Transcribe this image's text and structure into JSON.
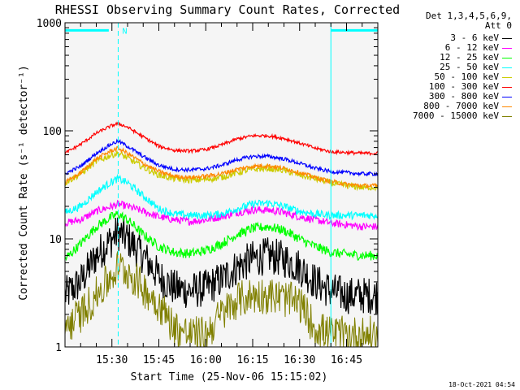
{
  "colors": {
    "background": "#ffffff",
    "axes": "#000000",
    "attenuator_marker": "#00ffff",
    "dashed_marker": "#00ffff"
  },
  "footer": {
    "timestamp": "18-Oct-2021 04:54"
  },
  "chart_data": {
    "type": "line",
    "title": "RHESSI Observing Summary Count Rates, Corrected",
    "xlabel": "Start Time (25-Nov-06 15:15:02)",
    "ylabel": "Corrected Count Rate (s⁻¹ detector⁻¹)",
    "yscale": "log",
    "ylim": [
      1,
      1000
    ],
    "xlim_minutes_after_start": [
      0,
      100
    ],
    "xticks": [
      {
        "label": "15:30",
        "minutes": 15
      },
      {
        "label": "15:45",
        "minutes": 30
      },
      {
        "label": "16:00",
        "minutes": 45
      },
      {
        "label": "16:15",
        "minutes": 60
      },
      {
        "label": "16:30",
        "minutes": 75
      },
      {
        "label": "16:45",
        "minutes": 90
      }
    ],
    "yticks": [
      {
        "label": "1",
        "value": 1
      },
      {
        "label": "10",
        "value": 10
      },
      {
        "label": "100",
        "value": 100
      },
      {
        "label": "1000",
        "value": 1000
      }
    ],
    "legend_header": [
      "Det 1,3,4,5,6,9,",
      "Att 0"
    ],
    "legend_placement": "right",
    "annotations": [
      {
        "text": "N",
        "minutes": 17,
        "value": 850
      },
      {
        "type": "vline-dashed",
        "minutes": 17
      },
      {
        "type": "vline-solid",
        "minutes": 85
      },
      {
        "type": "vline-dashed",
        "minutes": 100
      },
      {
        "type": "hbar",
        "value": 850,
        "from_minutes": 0,
        "to_minutes": 14
      },
      {
        "type": "hbar",
        "value": 850,
        "from_minutes": 85,
        "to_minutes": 100
      }
    ],
    "x_minutes": [
      0,
      5,
      10,
      15,
      17,
      20,
      25,
      30,
      35,
      40,
      45,
      50,
      55,
      60,
      65,
      70,
      75,
      80,
      85,
      90,
      95,
      100
    ],
    "series": [
      {
        "name": "3 - 6 keV",
        "color": "#000000",
        "values": [
          3.0,
          4.0,
          7.0,
          10.0,
          11.5,
          10.0,
          7.0,
          4.5,
          3.5,
          3.3,
          3.5,
          4.2,
          5.5,
          6.5,
          7.0,
          6.5,
          5.5,
          4.0,
          3.3,
          3.0,
          3.0,
          3.0
        ]
      },
      {
        "name": "6 - 12 keV",
        "color": "#ff00ff",
        "values": [
          14.0,
          15.0,
          18.0,
          20.0,
          21.0,
          20.0,
          18.0,
          16.0,
          15.0,
          14.5,
          15.0,
          16.0,
          17.5,
          18.5,
          18.5,
          17.5,
          16.0,
          15.0,
          14.0,
          13.5,
          13.0,
          13.0
        ]
      },
      {
        "name": "12 - 25 keV",
        "color": "#00ff00",
        "values": [
          6.5,
          9.0,
          13.0,
          16.0,
          17.0,
          15.0,
          11.0,
          8.5,
          7.5,
          7.3,
          7.8,
          9.0,
          11.0,
          12.5,
          13.0,
          12.0,
          10.0,
          8.5,
          7.5,
          7.2,
          7.0,
          7.0
        ]
      },
      {
        "name": "25 - 50 keV",
        "color": "#00ffff",
        "values": [
          17.5,
          20.0,
          27.0,
          34.0,
          36.0,
          33.0,
          25.0,
          19.0,
          17.0,
          16.5,
          16.5,
          17.0,
          19.0,
          21.0,
          21.5,
          20.0,
          18.0,
          17.0,
          16.5,
          16.5,
          16.5,
          16.5
        ]
      },
      {
        "name": "50 - 100 keV",
        "color": "#cccc00",
        "values": [
          33.0,
          40.0,
          52.0,
          60.0,
          62.0,
          56.0,
          46.0,
          39.0,
          36.0,
          35.0,
          35.5,
          37.0,
          41.0,
          44.0,
          45.0,
          43.0,
          39.0,
          36.0,
          33.0,
          31.0,
          30.0,
          30.0
        ]
      },
      {
        "name": "100 - 300 keV",
        "color": "#ff0000",
        "values": [
          62.0,
          75.0,
          95.0,
          112.0,
          117.0,
          108.0,
          88.0,
          72.0,
          66.0,
          65.0,
          67.0,
          74.0,
          84.0,
          90.0,
          90.0,
          85.0,
          77.0,
          69.0,
          64.0,
          63.0,
          62.0,
          62.0
        ]
      },
      {
        "name": "300 - 800 keV",
        "color": "#0000ff",
        "values": [
          40.0,
          47.0,
          62.0,
          76.0,
          80.0,
          72.0,
          58.0,
          48.0,
          44.0,
          43.5,
          44.5,
          48.0,
          54.0,
          58.0,
          58.0,
          55.0,
          50.0,
          45.0,
          42.0,
          41.0,
          40.0,
          40.0
        ]
      },
      {
        "name": "800 - 7000 keV",
        "color": "#ff8800",
        "values": [
          33.0,
          41.0,
          55.0,
          66.0,
          69.0,
          62.0,
          50.0,
          42.0,
          38.0,
          37.0,
          38.0,
          40.0,
          44.0,
          47.0,
          47.5,
          45.0,
          41.0,
          37.0,
          34.0,
          32.0,
          31.0,
          31.0
        ]
      },
      {
        "name": "7000 - 15000 keV",
        "color": "#808000",
        "values": [
          1.5,
          2.0,
          3.0,
          4.5,
          5.5,
          5.0,
          3.5,
          2.5,
          1.5,
          1.3,
          1.3,
          2.0,
          2.7,
          3.0,
          3.0,
          2.8,
          2.5,
          1.5,
          1.3,
          1.3,
          1.3,
          1.3
        ]
      }
    ]
  }
}
